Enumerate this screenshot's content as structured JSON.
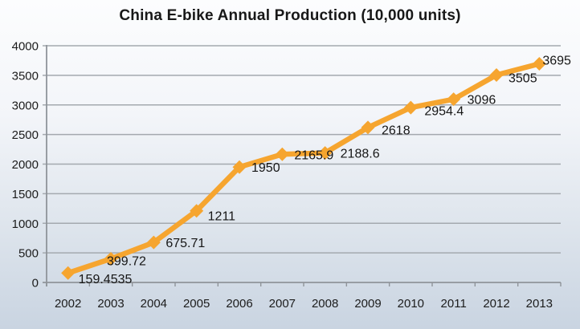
{
  "chart_data": {
    "type": "line",
    "title": "China E-bike Annual Production   (10,000 units)",
    "categories": [
      "2002",
      "2003",
      "2004",
      "2005",
      "2006",
      "2007",
      "2008",
      "2009",
      "2010",
      "2011",
      "2012",
      "2013"
    ],
    "series": [
      {
        "name": "annual-production",
        "values": [
          159.4535,
          399.72,
          675.71,
          1211,
          1950,
          2165.9,
          2188.6,
          2618,
          2954.4,
          3096,
          3505,
          3695
        ]
      }
    ],
    "point_labels": [
      "159.4535",
      "399.72",
      "675.71",
      "1211",
      "1950",
      "2165.9",
      "2188.6",
      "2618",
      "2954.4",
      "3096",
      "3505",
      "3695"
    ],
    "ylim": [
      0,
      4000
    ],
    "yticks": [
      0,
      500,
      1000,
      1500,
      2000,
      2500,
      3000,
      3500,
      4000
    ],
    "xlabel": "",
    "ylabel": "",
    "legend": "none",
    "grid": "horizontal-major",
    "marker": "diamond",
    "colors": {
      "line": "#f6a52f",
      "text": "#1c1c1c",
      "gridline": "#a4a9af",
      "axis": "#8f949a",
      "background_top": "#fbfcfe",
      "background_bottom": "#c9d4e1"
    }
  }
}
